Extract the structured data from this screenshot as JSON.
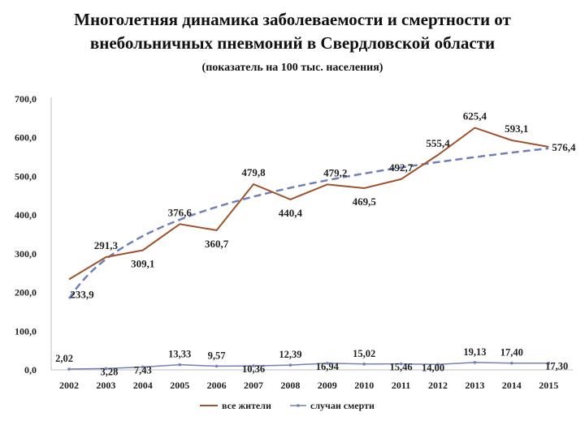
{
  "chart_data": {
    "type": "line",
    "title_line1": "Многолетняя динамика заболеваемости и смертности от",
    "title_line2": "внебольничных пневмоний в Свердловской области",
    "subtitle": "(показатель на 100 тыс. населения)",
    "categories": [
      "2002",
      "2003",
      "2004",
      "2005",
      "2006",
      "2007",
      "2008",
      "2009",
      "2010",
      "2011",
      "2012",
      "2013",
      "2014",
      "2015"
    ],
    "y_ticks": [
      "0,0",
      "100,0",
      "200,0",
      "300,0",
      "400,0",
      "500,0",
      "600,0",
      "700,0"
    ],
    "ylim": [
      0,
      700
    ],
    "grid": false,
    "legend_position": "bottom",
    "series": [
      {
        "name": "все жители",
        "color": "#a0522d",
        "style": "solid",
        "values": [
          233.9,
          291.3,
          309.1,
          376.6,
          360.7,
          479.8,
          440.4,
          479.2,
          469.5,
          492.7,
          555.4,
          625.4,
          593.1,
          576.4
        ],
        "labels": [
          "233,9",
          "291,3",
          "309,1",
          "376,6",
          "360,7",
          "479,8",
          "440,4",
          "479,2",
          "469,5",
          "492,7",
          "555,4",
          "625,4",
          "593,1",
          "576,4"
        ]
      },
      {
        "name": "случаи смерти",
        "color": "#7080b8",
        "style": "solid",
        "values": [
          2.02,
          3.28,
          7.43,
          13.33,
          9.57,
          10.36,
          12.39,
          16.94,
          15.02,
          15.46,
          14.0,
          19.13,
          17.4,
          17.3
        ],
        "labels": [
          "2,02",
          "3,28",
          "7,43",
          "13,33",
          "9,57",
          "10,36",
          "12,39",
          "16,94",
          "15,02",
          "15,46",
          "14,00",
          "19,13",
          "17,40",
          "17,30"
        ]
      }
    ],
    "trendline": {
      "type": "logarithmic",
      "of_series": "все жители",
      "color": "#7080b8",
      "style": "dashed"
    }
  }
}
